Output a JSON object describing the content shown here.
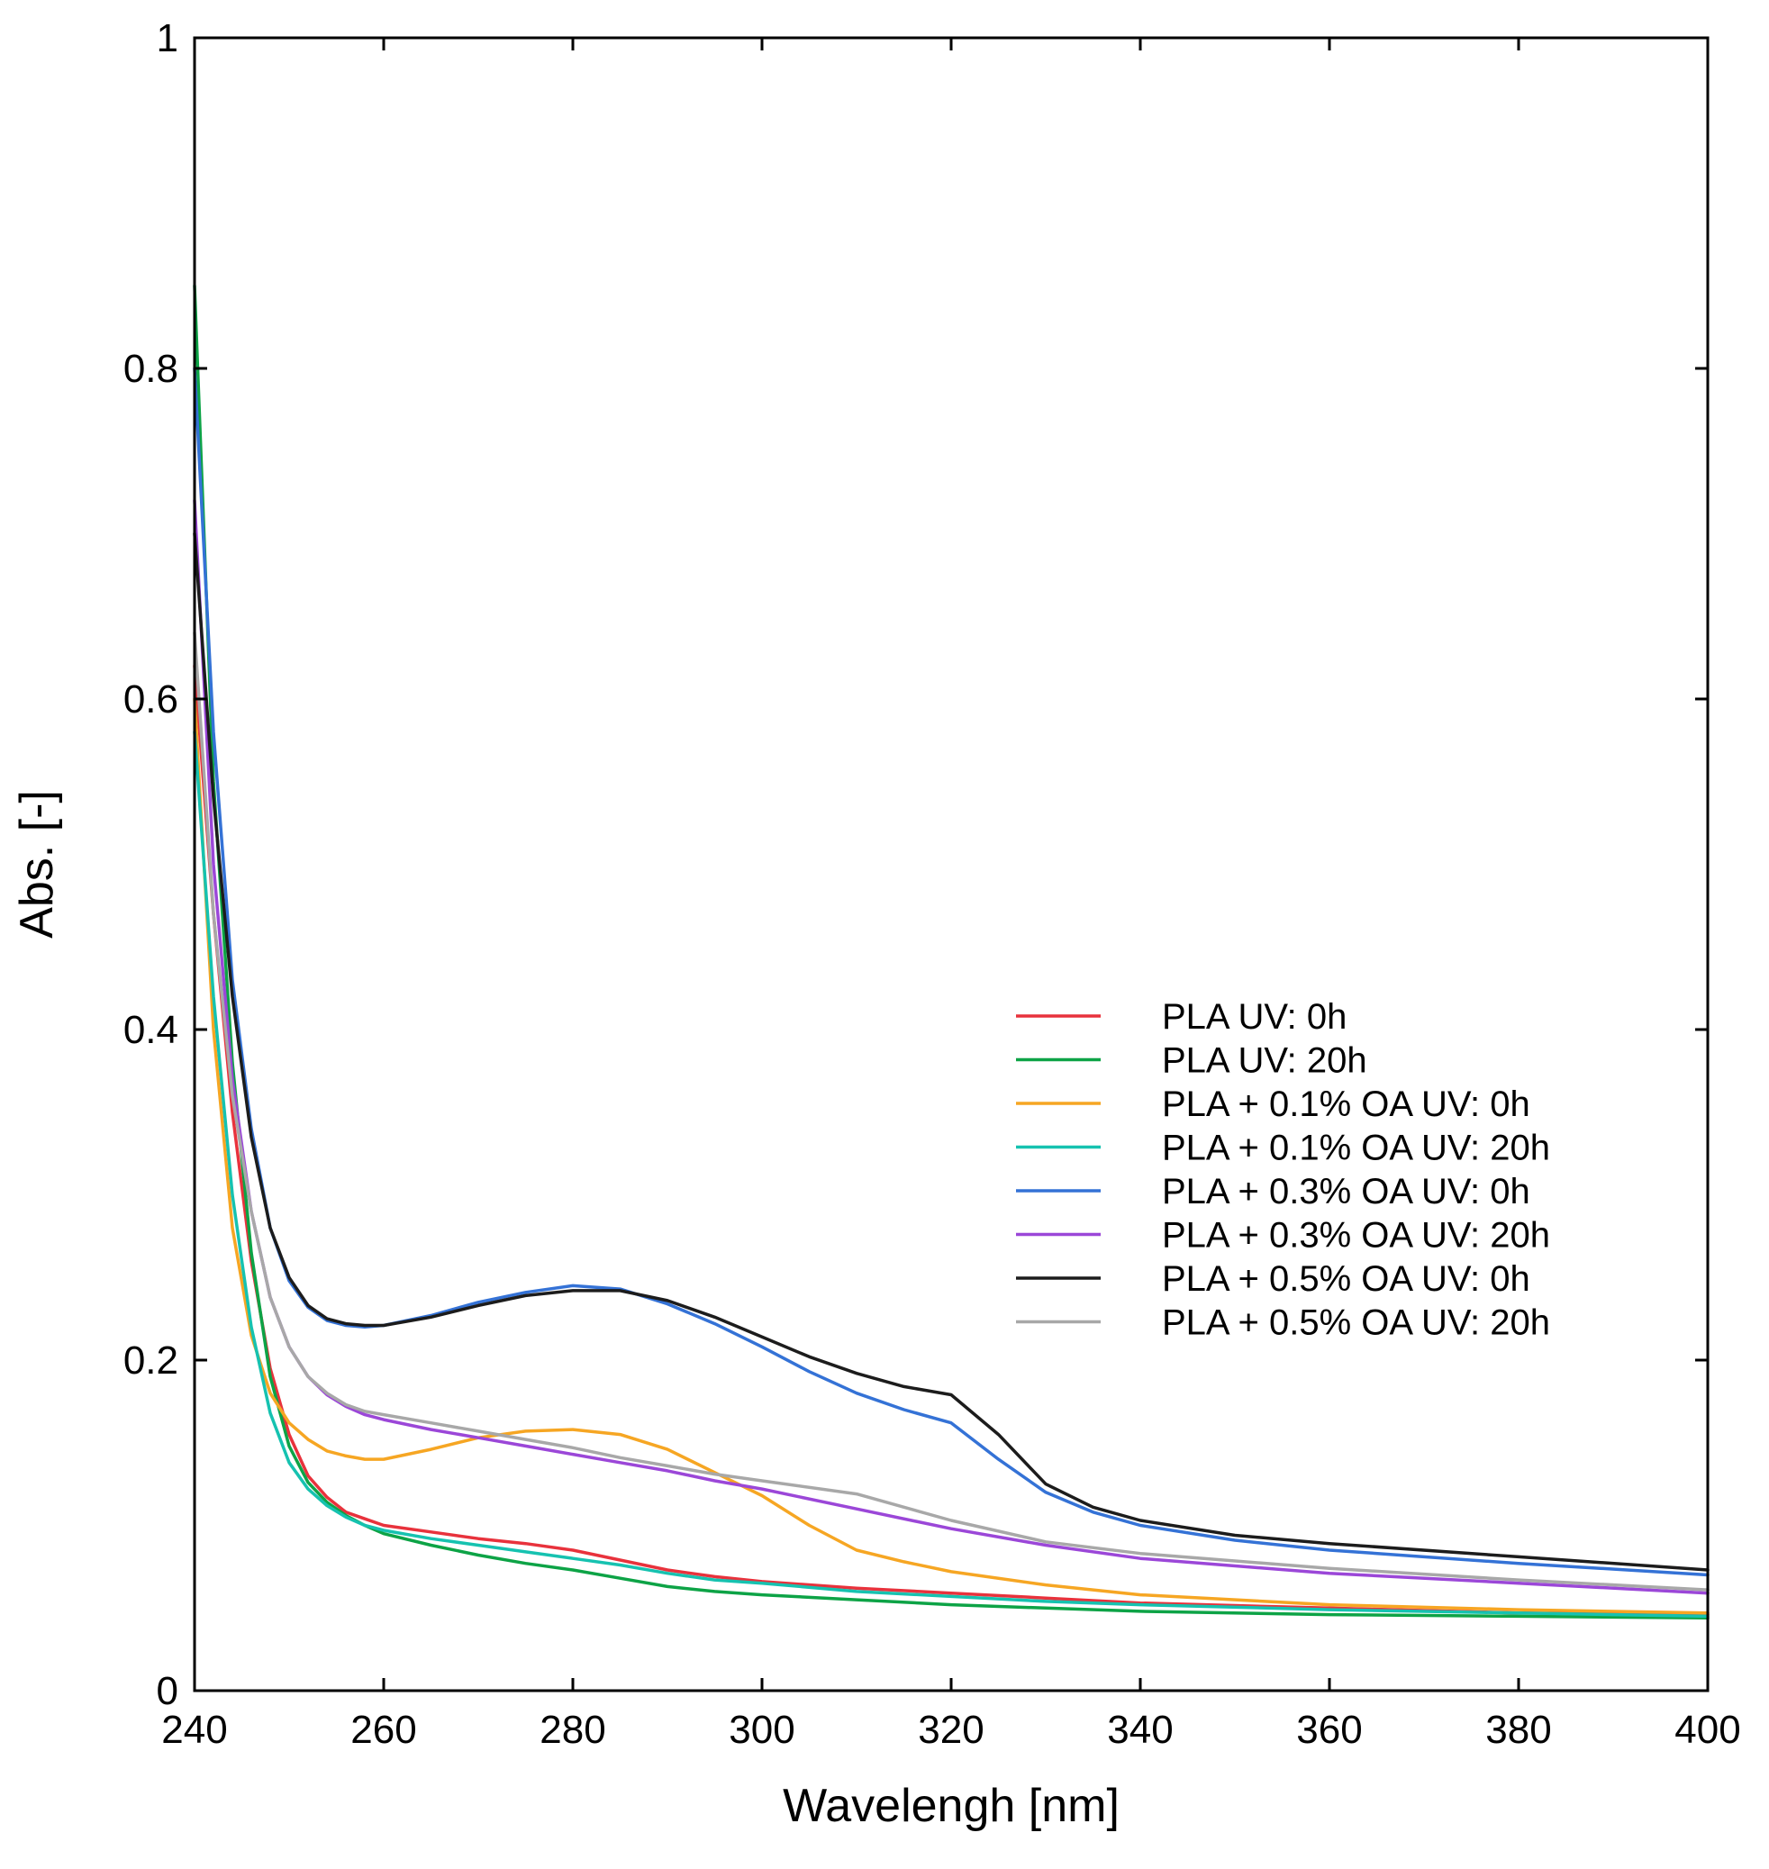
{
  "chart_data": {
    "type": "line",
    "title": "",
    "xlabel": "Wavelengh [nm]",
    "ylabel": "Abs. [-]",
    "xlim": [
      240,
      400
    ],
    "ylim": [
      0,
      1
    ],
    "xticks": [
      240,
      260,
      280,
      300,
      320,
      340,
      360,
      380,
      400
    ],
    "xtick_labels": [
      "240",
      "260",
      "280",
      "300",
      "320",
      "340",
      "360",
      "380",
      "400"
    ],
    "yticks": [
      0,
      0.2,
      0.4,
      0.6,
      0.8,
      1
    ],
    "ytick_labels": [
      "0",
      "0.2",
      "0.4",
      "0.6",
      "0.8",
      "1"
    ],
    "grid": false,
    "legend_position": "right",
    "series": [
      {
        "name": "PLA UV: 0h",
        "color": "#e8323c",
        "x": [
          240,
          242,
          244,
          246,
          248,
          250,
          252,
          254,
          256,
          258,
          260,
          265,
          270,
          275,
          280,
          285,
          290,
          295,
          300,
          310,
          320,
          330,
          340,
          360,
          380,
          400
        ],
        "y": [
          0.62,
          0.47,
          0.35,
          0.26,
          0.195,
          0.155,
          0.13,
          0.117,
          0.108,
          0.104,
          0.1,
          0.096,
          0.092,
          0.089,
          0.085,
          0.079,
          0.073,
          0.069,
          0.066,
          0.062,
          0.059,
          0.056,
          0.053,
          0.05,
          0.047,
          0.046
        ]
      },
      {
        "name": "PLA UV: 20h",
        "color": "#0da346",
        "x": [
          240,
          242,
          244,
          246,
          248,
          250,
          252,
          254,
          256,
          258,
          260,
          265,
          270,
          275,
          280,
          285,
          290,
          295,
          300,
          310,
          320,
          330,
          340,
          360,
          380,
          400
        ],
        "y": [
          0.85,
          0.55,
          0.38,
          0.265,
          0.19,
          0.148,
          0.126,
          0.114,
          0.106,
          0.1,
          0.095,
          0.088,
          0.082,
          0.077,
          0.073,
          0.068,
          0.063,
          0.06,
          0.058,
          0.055,
          0.052,
          0.05,
          0.048,
          0.046,
          0.045,
          0.044
        ]
      },
      {
        "name": "PLA + 0.1% OA UV: 0h",
        "color": "#f6a623",
        "x": [
          240,
          242,
          244,
          246,
          248,
          250,
          252,
          254,
          256,
          258,
          260,
          265,
          270,
          275,
          280,
          285,
          290,
          295,
          300,
          305,
          310,
          315,
          320,
          330,
          340,
          360,
          380,
          400
        ],
        "y": [
          0.6,
          0.4,
          0.28,
          0.215,
          0.18,
          0.162,
          0.152,
          0.145,
          0.142,
          0.14,
          0.14,
          0.146,
          0.153,
          0.157,
          0.158,
          0.155,
          0.146,
          0.132,
          0.118,
          0.1,
          0.085,
          0.078,
          0.072,
          0.064,
          0.058,
          0.052,
          0.049,
          0.047
        ]
      },
      {
        "name": "PLA + 0.1% OA UV: 20h",
        "color": "#16c2b0",
        "x": [
          240,
          242,
          244,
          246,
          248,
          250,
          252,
          254,
          256,
          258,
          260,
          265,
          270,
          275,
          280,
          285,
          290,
          295,
          300,
          310,
          320,
          330,
          340,
          360,
          380,
          400
        ],
        "y": [
          0.58,
          0.42,
          0.3,
          0.22,
          0.168,
          0.138,
          0.122,
          0.112,
          0.105,
          0.1,
          0.097,
          0.092,
          0.088,
          0.084,
          0.08,
          0.076,
          0.071,
          0.067,
          0.065,
          0.06,
          0.057,
          0.054,
          0.052,
          0.049,
          0.047,
          0.045
        ]
      },
      {
        "name": "PLA + 0.3% OA UV: 0h",
        "color": "#3472d6",
        "x": [
          240,
          242,
          244,
          246,
          248,
          250,
          252,
          254,
          256,
          258,
          260,
          265,
          270,
          275,
          280,
          285,
          290,
          295,
          300,
          305,
          310,
          315,
          320,
          325,
          330,
          335,
          340,
          350,
          360,
          380,
          400
        ],
        "y": [
          0.8,
          0.58,
          0.43,
          0.34,
          0.28,
          0.248,
          0.232,
          0.224,
          0.221,
          0.22,
          0.221,
          0.227,
          0.235,
          0.241,
          0.245,
          0.243,
          0.234,
          0.222,
          0.208,
          0.193,
          0.18,
          0.17,
          0.162,
          0.14,
          0.12,
          0.108,
          0.1,
          0.091,
          0.085,
          0.077,
          0.07
        ]
      },
      {
        "name": "PLA + 0.3% OA UV: 20h",
        "color": "#9b47d8",
        "x": [
          240,
          242,
          244,
          246,
          248,
          250,
          252,
          254,
          256,
          258,
          260,
          265,
          270,
          275,
          280,
          285,
          290,
          295,
          300,
          310,
          320,
          330,
          340,
          360,
          380,
          400
        ],
        "y": [
          0.72,
          0.5,
          0.37,
          0.29,
          0.238,
          0.208,
          0.19,
          0.179,
          0.172,
          0.167,
          0.164,
          0.158,
          0.153,
          0.148,
          0.143,
          0.138,
          0.133,
          0.127,
          0.122,
          0.11,
          0.098,
          0.088,
          0.08,
          0.071,
          0.065,
          0.059
        ]
      },
      {
        "name": "PLA + 0.5% OA UV: 0h",
        "color": "#1c1c1c",
        "x": [
          240,
          242,
          244,
          246,
          248,
          250,
          252,
          254,
          256,
          258,
          260,
          265,
          270,
          275,
          280,
          285,
          290,
          295,
          300,
          305,
          310,
          315,
          320,
          325,
          330,
          335,
          340,
          350,
          360,
          380,
          400
        ],
        "y": [
          0.7,
          0.54,
          0.42,
          0.335,
          0.28,
          0.25,
          0.233,
          0.225,
          0.222,
          0.221,
          0.221,
          0.226,
          0.233,
          0.239,
          0.242,
          0.242,
          0.236,
          0.226,
          0.214,
          0.202,
          0.192,
          0.184,
          0.179,
          0.155,
          0.125,
          0.111,
          0.103,
          0.094,
          0.089,
          0.081,
          0.073
        ]
      },
      {
        "name": "PLA + 0.5% OA UV: 20h",
        "color": "#a8a8a8",
        "x": [
          240,
          242,
          244,
          246,
          248,
          250,
          252,
          254,
          256,
          258,
          260,
          265,
          270,
          275,
          280,
          285,
          290,
          295,
          300,
          310,
          320,
          330,
          340,
          360,
          380,
          400
        ],
        "y": [
          0.64,
          0.47,
          0.36,
          0.29,
          0.238,
          0.208,
          0.19,
          0.18,
          0.173,
          0.169,
          0.167,
          0.162,
          0.157,
          0.152,
          0.147,
          0.141,
          0.136,
          0.131,
          0.127,
          0.119,
          0.103,
          0.09,
          0.083,
          0.074,
          0.067,
          0.061
        ]
      }
    ]
  }
}
